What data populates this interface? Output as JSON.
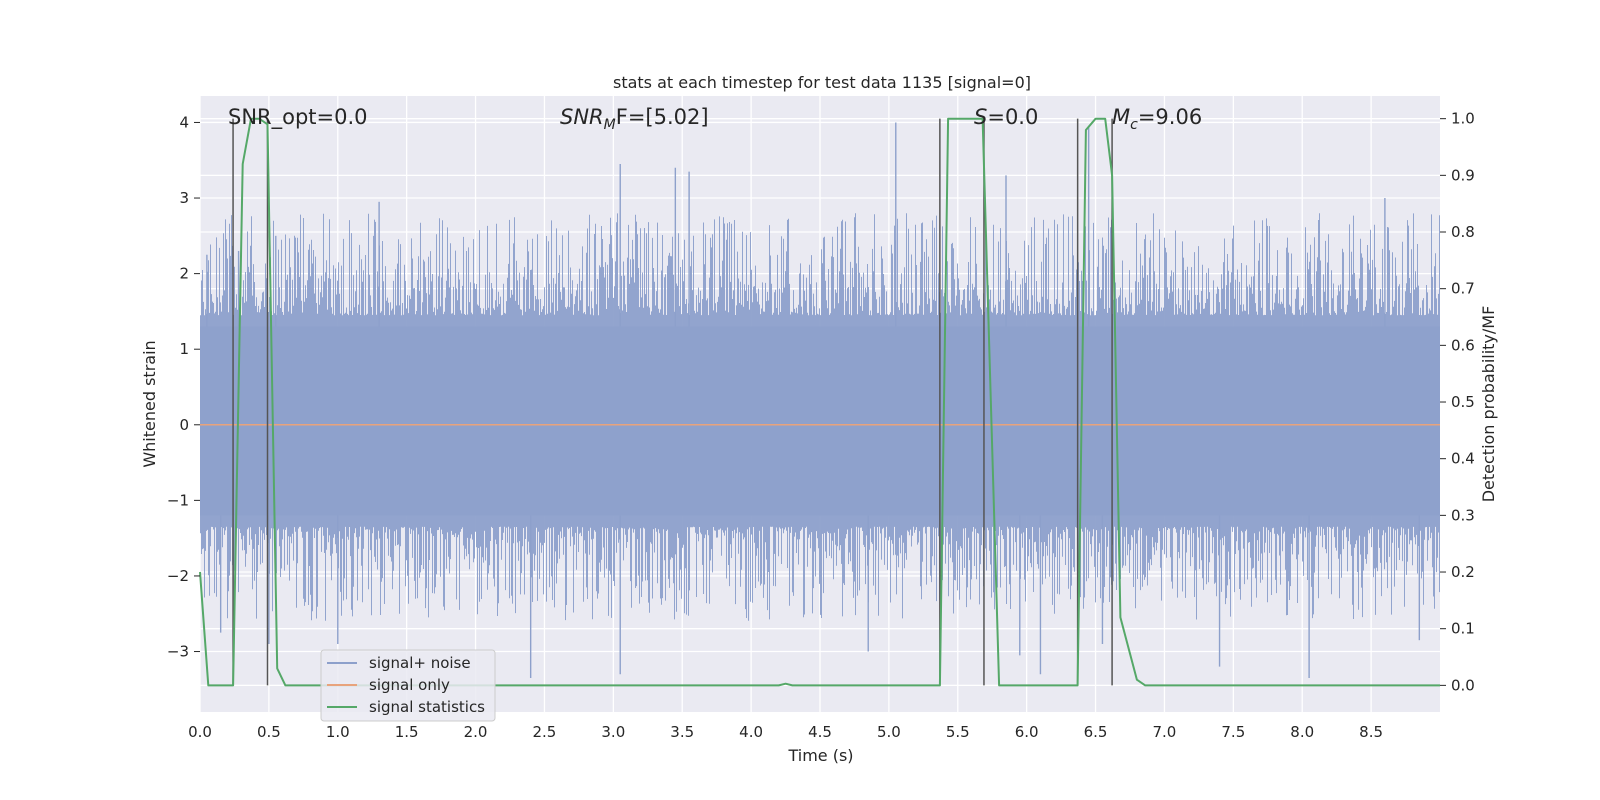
{
  "chart_data": {
    "type": "line",
    "title": "stats at each timestep for test data 1135 [signal=0]",
    "xlabel": "Time (s)",
    "ylabel_left": "Whitened strain",
    "ylabel_right": "Detection probability/MF",
    "xlim": [
      0.0,
      9.0
    ],
    "ylim_left": [
      -3.8,
      4.35
    ],
    "ylim_right": [
      -0.047,
      1.04
    ],
    "xticks": [
      "0.0",
      "0.5",
      "1.0",
      "1.5",
      "2.0",
      "2.5",
      "3.0",
      "3.5",
      "4.0",
      "4.5",
      "5.0",
      "5.5",
      "6.0",
      "6.5",
      "7.0",
      "7.5",
      "8.0",
      "8.5"
    ],
    "yticks_left": [
      "4",
      "3",
      "2",
      "1",
      "0",
      "−1",
      "−2",
      "−3"
    ],
    "yticks_right": [
      "1.0",
      "0.9",
      "0.8",
      "0.7",
      "0.6",
      "0.5",
      "0.4",
      "0.3",
      "0.2",
      "0.1",
      "0.0"
    ],
    "grid": true,
    "legend_position": "lower-left",
    "annotations": {
      "snr_opt": "SNR_opt=0.0",
      "snr_mf_var": "SNR",
      "snr_mf_sub": "M",
      "snr_mf_rest": "F=[5.02]",
      "s_var": "S",
      "s_rest": "=0.0",
      "mc_var": "M",
      "mc_sub": "c",
      "mc_rest": "=9.06"
    },
    "series": [
      {
        "name": "signal+ noise",
        "color": "#8da0cb",
        "band_core": [
          -1.2,
          1.3
        ],
        "spike_extremes": [
          {
            "x": 0.05,
            "y": 2.25
          },
          {
            "x": 0.15,
            "y": -2.75
          },
          {
            "x": 0.28,
            "y": 2.3
          },
          {
            "x": 0.5,
            "y": -2.9
          },
          {
            "x": 0.55,
            "y": 2.5
          },
          {
            "x": 1.0,
            "y": -2.9
          },
          {
            "x": 1.3,
            "y": 2.95
          },
          {
            "x": 2.4,
            "y": -3.35
          },
          {
            "x": 3.05,
            "y": 3.45
          },
          {
            "x": 3.05,
            "y": -3.3
          },
          {
            "x": 3.45,
            "y": 3.4
          },
          {
            "x": 3.55,
            "y": 3.35
          },
          {
            "x": 4.85,
            "y": -3.0
          },
          {
            "x": 5.05,
            "y": 4.0
          },
          {
            "x": 5.85,
            "y": 3.3
          },
          {
            "x": 5.95,
            "y": -3.05
          },
          {
            "x": 6.1,
            "y": -3.3
          },
          {
            "x": 6.45,
            "y": 3.95
          },
          {
            "x": 6.55,
            "y": -2.9
          },
          {
            "x": 7.4,
            "y": -3.2
          },
          {
            "x": 8.05,
            "y": -3.35
          },
          {
            "x": 8.6,
            "y": 3.0
          },
          {
            "x": 8.85,
            "y": -2.85
          }
        ]
      },
      {
        "name": "signal only",
        "color": "#e8a37c",
        "x": [
          0.0,
          9.0
        ],
        "y": [
          0.0,
          0.0
        ]
      },
      {
        "name": "signal statistics",
        "color": "#55a868",
        "axis": "right",
        "x": [
          0.0,
          0.06,
          0.24,
          0.31,
          0.37,
          0.43,
          0.49,
          0.56,
          0.62,
          4.2,
          4.25,
          4.3,
          5.37,
          5.43,
          5.5,
          5.68,
          5.8,
          5.86,
          6.37,
          6.43,
          6.5,
          6.57,
          6.62,
          6.68,
          6.8,
          6.86,
          9.0
        ],
        "y": [
          0.2,
          0.0,
          0.0,
          0.92,
          1.0,
          1.0,
          0.99,
          0.03,
          0.0,
          0.0,
          0.003,
          0.0,
          0.0,
          1.0,
          1.0,
          1.0,
          0.0,
          0.0,
          0.0,
          0.98,
          1.0,
          1.0,
          0.9,
          0.12,
          0.01,
          0.0,
          0.0
        ]
      }
    ],
    "vertical_markers": [
      {
        "x": 0.24,
        "y_from": 0.0,
        "y_to": 1.0
      },
      {
        "x": 0.49,
        "y_from": 0.0,
        "y_to": 1.0
      },
      {
        "x": 5.37,
        "y_from": 0.0,
        "y_to": 1.0
      },
      {
        "x": 5.69,
        "y_from": 0.0,
        "y_to": 1.0
      },
      {
        "x": 6.37,
        "y_from": 0.0,
        "y_to": 1.0
      },
      {
        "x": 6.62,
        "y_from": 0.0,
        "y_to": 1.0
      }
    ],
    "marker_color": "#555555"
  }
}
